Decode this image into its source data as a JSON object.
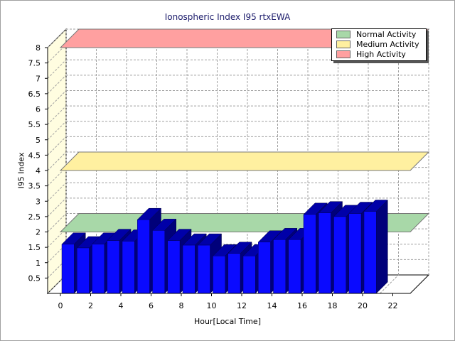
{
  "chart_data": {
    "type": "bar",
    "title": "Ionospheric Index I95 rtxEWA",
    "xlabel": "Hour[Local Time]",
    "ylabel": "I95 Index",
    "ylim": [
      0,
      8
    ],
    "xlim": [
      0,
      24
    ],
    "y_ticks": [
      "0.5",
      "1",
      "1.5",
      "2",
      "2.5",
      "3",
      "3.5",
      "4",
      "4.5",
      "5",
      "5.5",
      "6",
      "6.5",
      "7",
      "7.5",
      "8"
    ],
    "x_ticks": [
      "0",
      "2",
      "4",
      "6",
      "8",
      "10",
      "12",
      "14",
      "16",
      "18",
      "20",
      "22"
    ],
    "grid": true,
    "legend_position": "top-right",
    "bar_color": "#0a0aff",
    "series": [
      {
        "x": [
          0,
          1,
          2,
          3,
          4,
          5,
          6,
          7,
          8,
          9,
          10,
          11,
          12,
          13,
          14,
          15,
          16,
          17,
          18,
          19,
          20
        ],
        "values": [
          1.6,
          1.48,
          1.6,
          1.72,
          1.7,
          2.4,
          2.05,
          1.72,
          1.57,
          1.57,
          1.22,
          1.3,
          1.22,
          1.67,
          1.75,
          1.75,
          2.57,
          2.62,
          2.5,
          2.6,
          2.67
        ]
      }
    ],
    "bands": [
      {
        "name": "Normal Activity",
        "y": 2.0,
        "color": "#a8d8a8"
      },
      {
        "name": "Medium Activity",
        "y": 4.0,
        "color": "#fff0a0"
      },
      {
        "name": "High Activity",
        "y": 8.0,
        "color": "#ffa0a0"
      }
    ]
  }
}
